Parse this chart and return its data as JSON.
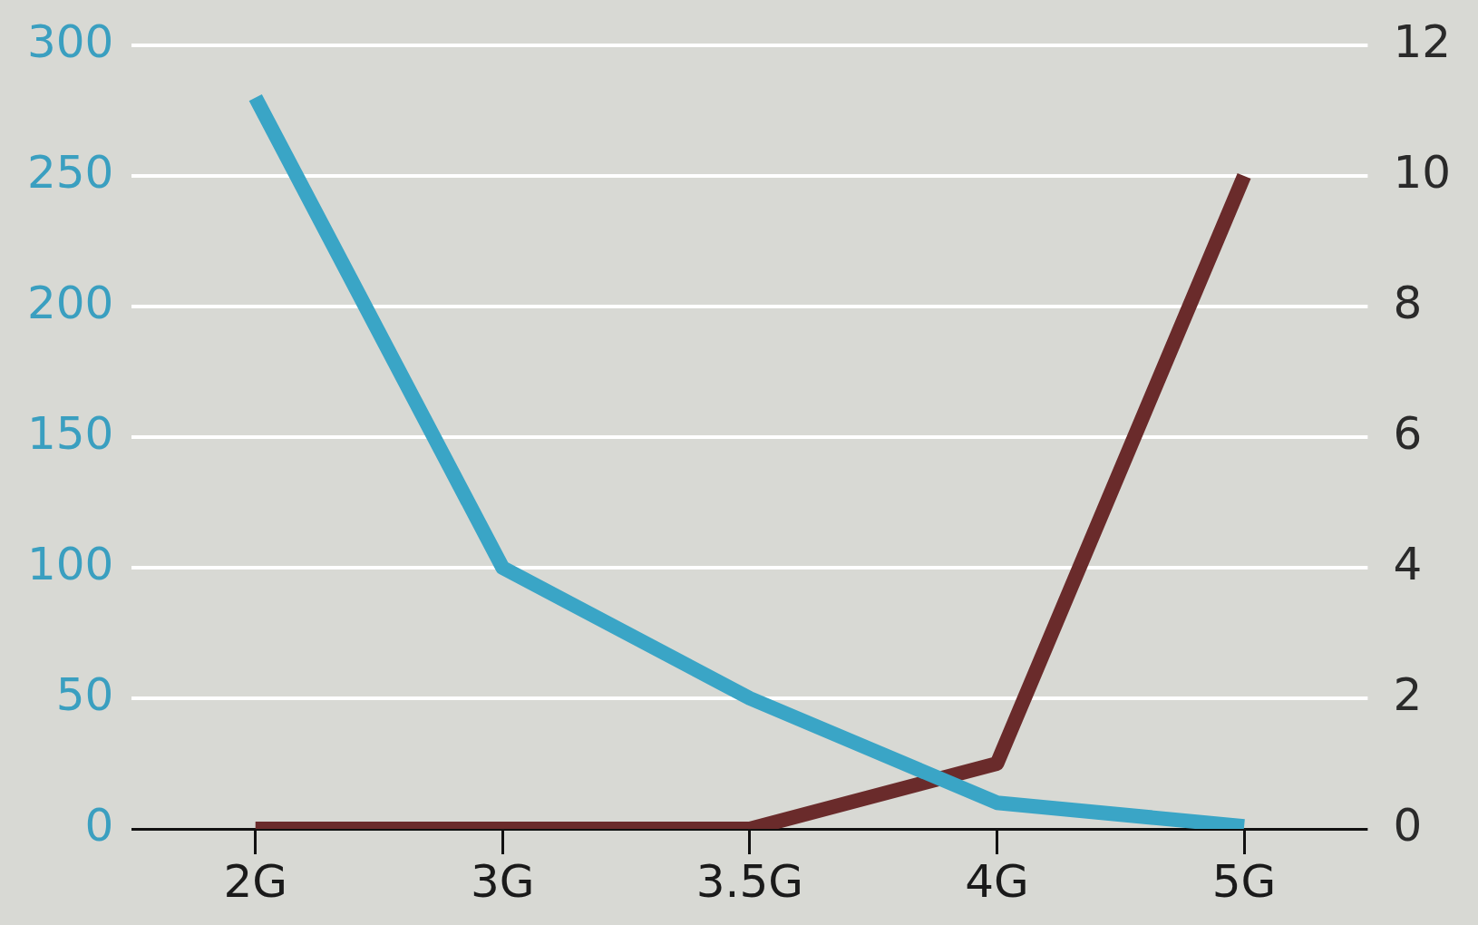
{
  "chart_data": {
    "type": "line",
    "categories": [
      "2G",
      "3G",
      "3.5G",
      "4G",
      "5G"
    ],
    "series": [
      {
        "color": "#3aa5c6",
        "values": [
          280,
          100,
          50,
          10,
          1
        ]
      },
      {
        "color": "#6a2b2b",
        "values": [
          0,
          0,
          0,
          1,
          10
        ],
        "axis": "y2"
      }
    ],
    "ylim": [
      0,
      300
    ],
    "yticks": [
      0,
      50,
      100,
      150,
      200,
      250,
      300
    ],
    "y2lim": [
      0,
      12
    ],
    "y2ticks": [
      0,
      2,
      4,
      6,
      8,
      10,
      12
    ],
    "grid": "y",
    "legend": false,
    "marker": "none",
    "line_style": "solid"
  }
}
